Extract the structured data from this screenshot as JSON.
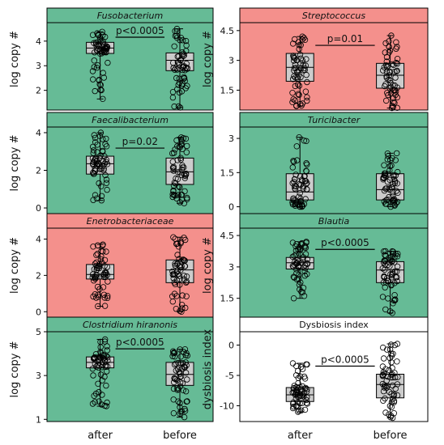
{
  "colors": {
    "green": "#66bb96",
    "red": "#f4908c",
    "white": "#ffffff",
    "box": "#cccccc",
    "outline": "#000000"
  },
  "x_categories": [
    "after",
    "before"
  ],
  "chart_data": [
    {
      "type": "box",
      "title": "Fusobacterium",
      "title_italic": true,
      "background": "green",
      "ylabel": "log copy #",
      "yticks": [
        2,
        3,
        4
      ],
      "ylim": [
        1.2,
        4.75
      ],
      "categories": [
        "after",
        "before"
      ],
      "boxes": [
        {
          "category": "after",
          "whisker_low": 1.65,
          "q1": 3.5,
          "median": 3.72,
          "q3": 3.95,
          "whisker_high": 4.38
        },
        {
          "category": "before",
          "whisker_low": 1.3,
          "q1": 2.8,
          "median": 3.22,
          "q3": 3.52,
          "whisker_high": 4.5
        }
      ],
      "annotation": "p<0.0005"
    },
    {
      "type": "box",
      "title": "Streptococcus",
      "title_italic": true,
      "background": "red",
      "ylabel": "log copy #",
      "yticks": [
        1.5,
        3.0,
        4.5
      ],
      "ylim": [
        0.5,
        4.9
      ],
      "categories": [
        "after",
        "before"
      ],
      "boxes": [
        {
          "category": "after",
          "whisker_low": 0.7,
          "q1": 1.95,
          "median": 2.65,
          "q3": 3.35,
          "whisker_high": 4.2
        },
        {
          "category": "before",
          "whisker_low": 0.6,
          "q1": 1.6,
          "median": 2.25,
          "q3": 2.85,
          "whisker_high": 4.25
        }
      ],
      "annotation": "p=0.01"
    },
    {
      "type": "box",
      "title": "Faecalibacterium",
      "title_italic": true,
      "background": "green",
      "ylabel": "log copy #",
      "yticks": [
        0,
        2,
        4
      ],
      "ylim": [
        -0.3,
        4.3
      ],
      "categories": [
        "after",
        "before"
      ],
      "boxes": [
        {
          "category": "after",
          "whisker_low": 0.4,
          "q1": 1.8,
          "median": 2.35,
          "q3": 2.75,
          "whisker_high": 4.0
        },
        {
          "category": "before",
          "whisker_low": 0.25,
          "q1": 1.25,
          "median": 1.92,
          "q3": 2.65,
          "whisker_high": 3.75
        }
      ],
      "annotation": "p=0.02"
    },
    {
      "type": "box",
      "title": "Turicibacter",
      "title_italic": true,
      "background": "green",
      "ylabel": "",
      "yticks": [
        0.0,
        1.5,
        3.0
      ],
      "ylim": [
        -0.3,
        3.5
      ],
      "categories": [
        "after",
        "before"
      ],
      "boxes": [
        {
          "category": "after",
          "whisker_low": 0.0,
          "q1": 0.3,
          "median": 0.65,
          "q3": 1.45,
          "whisker_high": 3.05
        },
        {
          "category": "before",
          "whisker_low": 0.0,
          "q1": 0.3,
          "median": 0.75,
          "q3": 1.45,
          "whisker_high": 2.35
        }
      ],
      "annotation": ""
    },
    {
      "type": "box",
      "title": "Enetrobacteriaceae",
      "title_italic": true,
      "background": "red",
      "ylabel": "log copy #",
      "yticks": [
        0,
        2,
        4
      ],
      "ylim": [
        -0.3,
        4.6
      ],
      "categories": [
        "after",
        "before"
      ],
      "boxes": [
        {
          "category": "after",
          "whisker_low": 0.3,
          "q1": 1.8,
          "median": 2.05,
          "q3": 2.6,
          "whisker_high": 3.7
        },
        {
          "category": "before",
          "whisker_low": 0.0,
          "q1": 1.6,
          "median": 2.3,
          "q3": 2.85,
          "whisker_high": 4.1
        }
      ],
      "annotation": ""
    },
    {
      "type": "box",
      "title": "Blautia",
      "title_italic": true,
      "background": "green",
      "ylabel": "log copy #",
      "yticks": [
        1.5,
        3.0,
        4.5
      ],
      "ylim": [
        0.6,
        4.85
      ],
      "categories": [
        "after",
        "before"
      ],
      "boxes": [
        {
          "category": "after",
          "whisker_low": 1.5,
          "q1": 2.9,
          "median": 3.2,
          "q3": 3.45,
          "whisker_high": 4.2
        },
        {
          "category": "before",
          "whisker_low": 0.8,
          "q1": 2.25,
          "median": 2.85,
          "q3": 3.25,
          "whisker_high": 3.75
        }
      ],
      "annotation": "p<0.0005"
    },
    {
      "type": "box",
      "title": "Clostridium hiranonis",
      "title_italic": true,
      "background": "green",
      "ylabel": "log copy #",
      "yticks": [
        1,
        3,
        5
      ],
      "ylim": [
        0.9,
        5.0
      ],
      "categories": [
        "after",
        "before"
      ],
      "boxes": [
        {
          "category": "after",
          "whisker_low": 1.6,
          "q1": 3.35,
          "median": 3.6,
          "q3": 3.85,
          "whisker_high": 4.65
        },
        {
          "category": "before",
          "whisker_low": 1.1,
          "q1": 2.55,
          "median": 3.05,
          "q3": 3.6,
          "whisker_high": 4.2
        }
      ],
      "annotation": "p<0.0005"
    },
    {
      "type": "box",
      "title": "Dysbiosis index",
      "title_italic": false,
      "background": "white",
      "ylabel": "dysbiosis index",
      "yticks": [
        -10,
        -5,
        0
      ],
      "ylim": [
        -12.6,
        2.2
      ],
      "categories": [
        "after",
        "before"
      ],
      "boxes": [
        {
          "category": "after",
          "whisker_low": -11.0,
          "q1": -9.3,
          "median": -8.2,
          "q3": -7.0,
          "whisker_high": -3.0
        },
        {
          "category": "before",
          "whisker_low": -12.0,
          "q1": -8.7,
          "median": -6.5,
          "q3": -4.8,
          "whisker_high": 0.2
        }
      ],
      "annotation": "p<0.0005"
    }
  ]
}
